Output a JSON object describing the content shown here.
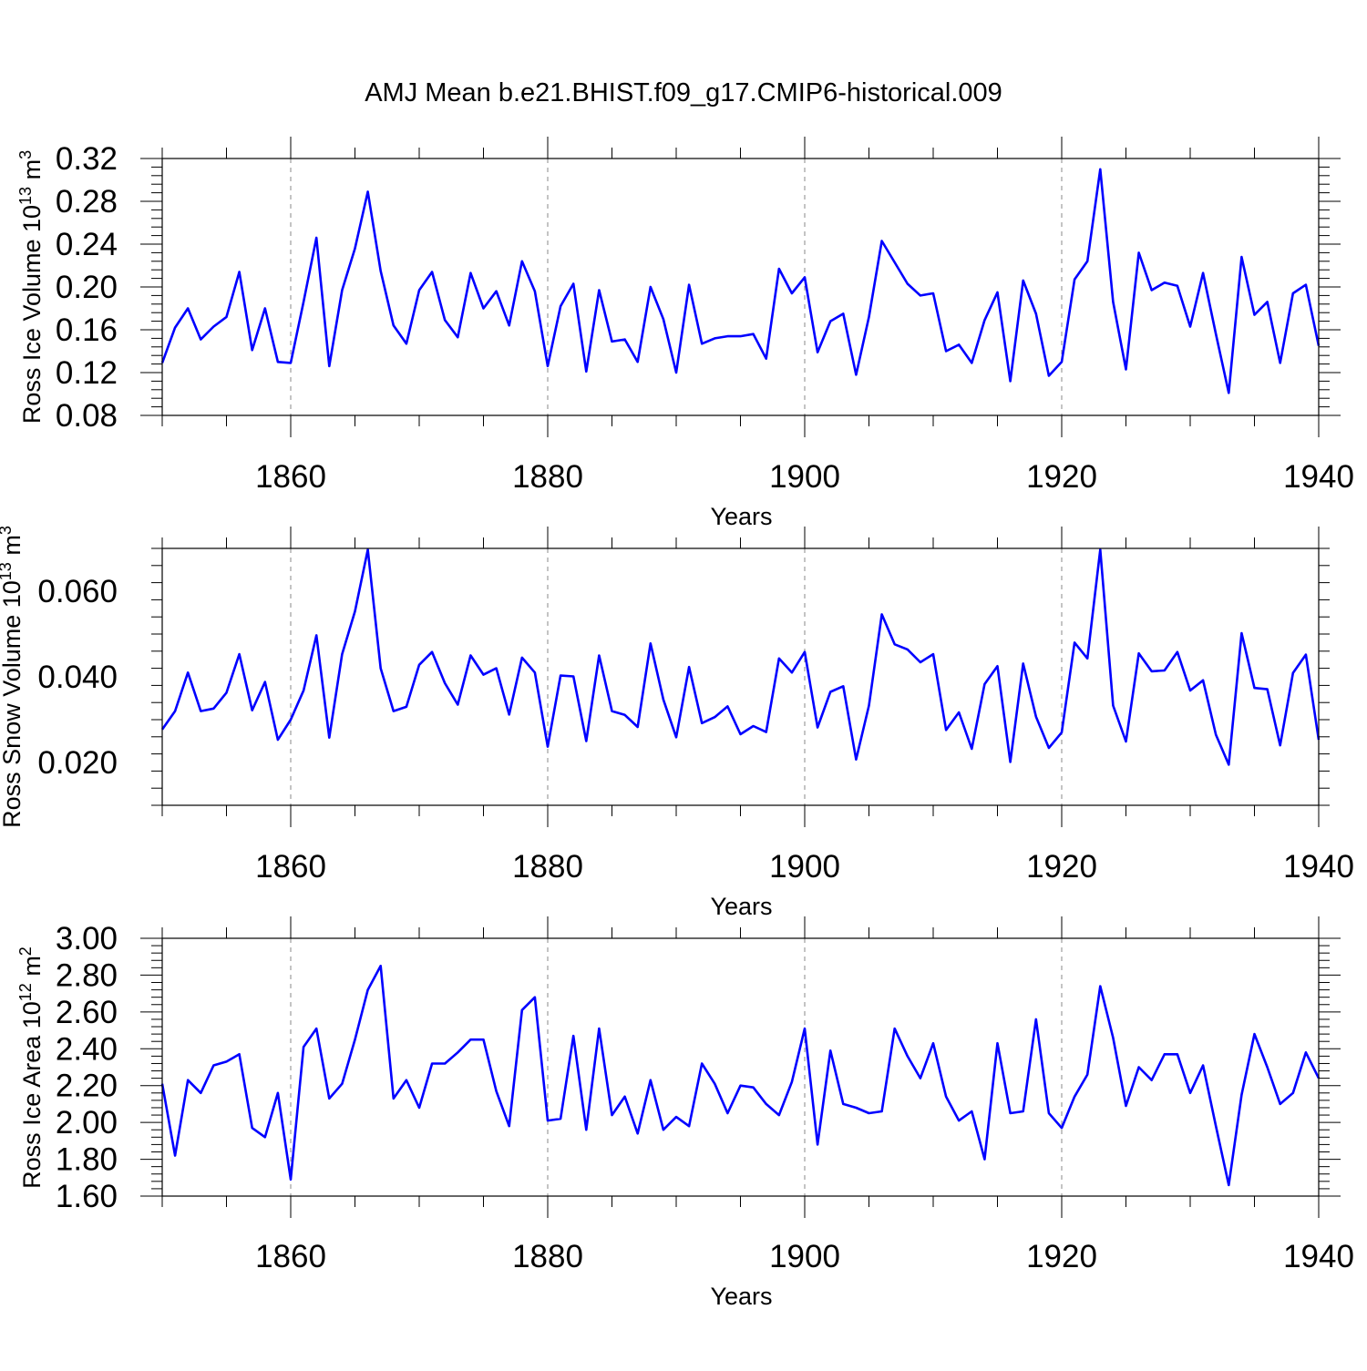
{
  "title": "AMJ Mean b.e21.BHIST.f09_g17.CMIP6-historical.009",
  "colors": {
    "series": "#0000ff",
    "axis": "#000000",
    "gridline": "#888888"
  },
  "chart_data": [
    {
      "type": "line",
      "ylabel": "Ross Ice Volume 10",
      "ylabel_sup": "13",
      "ylabel_unit": "m",
      "ylabel_unit_sup": "3",
      "xlabel": "Years",
      "xlim": [
        1850,
        1940
      ],
      "ylim": [
        0.08,
        0.32
      ],
      "yticks": [
        "0.08",
        "0.12",
        "0.16",
        "0.20",
        "0.24",
        "0.28",
        "0.32"
      ],
      "xticks": [
        "1860",
        "1880",
        "1900",
        "1920",
        "1940"
      ],
      "x_start": 1850,
      "values": [
        0.129,
        0.162,
        0.18,
        0.151,
        0.163,
        0.172,
        0.214,
        0.141,
        0.18,
        0.13,
        0.129,
        0.186,
        0.246,
        0.126,
        0.197,
        0.236,
        0.289,
        0.215,
        0.164,
        0.147,
        0.197,
        0.214,
        0.169,
        0.153,
        0.213,
        0.18,
        0.196,
        0.164,
        0.224,
        0.196,
        0.126,
        0.182,
        0.203,
        0.121,
        0.197,
        0.149,
        0.151,
        0.13,
        0.2,
        0.17,
        0.12,
        0.202,
        0.147,
        0.152,
        0.154,
        0.154,
        0.156,
        0.133,
        0.217,
        0.194,
        0.209,
        0.139,
        0.168,
        0.175,
        0.118,
        0.172,
        0.243,
        0.223,
        0.203,
        0.192,
        0.194,
        0.14,
        0.146,
        0.129,
        0.169,
        0.195,
        0.112,
        0.206,
        0.175,
        0.117,
        0.13,
        0.207,
        0.224,
        0.31,
        0.186,
        0.123,
        0.232,
        0.197,
        0.204,
        0.201,
        0.163,
        0.213,
        0.156,
        0.101,
        0.228,
        0.174,
        0.186,
        0.129,
        0.194,
        0.202,
        0.145
      ]
    },
    {
      "type": "line",
      "ylabel": "Ross Snow Volume 10",
      "ylabel_sup": "13",
      "ylabel_unit": "m",
      "ylabel_unit_sup": "3",
      "xlabel": "Years",
      "xlim": [
        1850,
        1940
      ],
      "ylim": [
        0.01,
        0.07
      ],
      "yticks": [
        "0.020",
        "0.040",
        "0.060"
      ],
      "xticks": [
        "1860",
        "1880",
        "1900",
        "1920",
        "1940"
      ],
      "x_start": 1850,
      "values": [
        0.0277,
        0.032,
        0.041,
        0.032,
        0.0326,
        0.0363,
        0.0453,
        0.0322,
        0.0388,
        0.0253,
        0.03,
        0.0368,
        0.0497,
        0.0258,
        0.0453,
        0.0553,
        0.0697,
        0.042,
        0.032,
        0.033,
        0.0428,
        0.0458,
        0.0385,
        0.0335,
        0.045,
        0.0405,
        0.042,
        0.0312,
        0.0445,
        0.041,
        0.0237,
        0.0403,
        0.0401,
        0.025,
        0.045,
        0.032,
        0.0311,
        0.0283,
        0.0478,
        0.0347,
        0.0259,
        0.0423,
        0.0292,
        0.0306,
        0.0331,
        0.0266,
        0.0285,
        0.0271,
        0.0443,
        0.041,
        0.0458,
        0.0282,
        0.0365,
        0.0378,
        0.0207,
        0.0333,
        0.0546,
        0.0476,
        0.0464,
        0.0434,
        0.0453,
        0.0276,
        0.0317,
        0.0232,
        0.0383,
        0.0425,
        0.0201,
        0.0431,
        0.0307,
        0.0234,
        0.027,
        0.048,
        0.0443,
        0.0697,
        0.0333,
        0.0249,
        0.0455,
        0.0413,
        0.0415,
        0.0458,
        0.0368,
        0.0392,
        0.0265,
        0.0195,
        0.0502,
        0.0374,
        0.0371,
        0.024,
        0.0409,
        0.0452,
        0.0253
      ]
    },
    {
      "type": "line",
      "ylabel": "Ross Ice Area 10",
      "ylabel_sup": "12",
      "ylabel_unit": "m",
      "ylabel_unit_sup": "2",
      "xlabel": "Years",
      "xlim": [
        1850,
        1940
      ],
      "ylim": [
        1.6,
        3.0
      ],
      "yticks": [
        "1.60",
        "1.80",
        "2.00",
        "2.20",
        "2.40",
        "2.60",
        "2.80",
        "3.00"
      ],
      "xticks": [
        "1860",
        "1880",
        "1900",
        "1920",
        "1940"
      ],
      "x_start": 1850,
      "values": [
        2.21,
        1.82,
        2.23,
        2.16,
        2.31,
        2.33,
        2.37,
        1.97,
        1.92,
        2.16,
        1.69,
        2.41,
        2.51,
        2.13,
        2.21,
        2.45,
        2.72,
        2.85,
        2.13,
        2.23,
        2.08,
        2.32,
        2.32,
        2.38,
        2.45,
        2.45,
        2.17,
        1.98,
        2.61,
        2.68,
        2.01,
        2.02,
        2.47,
        1.96,
        2.51,
        2.04,
        2.14,
        1.94,
        2.23,
        1.96,
        2.03,
        1.98,
        2.32,
        2.21,
        2.05,
        2.2,
        2.19,
        2.1,
        2.04,
        2.22,
        2.51,
        1.88,
        2.39,
        2.1,
        2.08,
        2.05,
        2.06,
        2.51,
        2.36,
        2.24,
        2.43,
        2.14,
        2.01,
        2.06,
        1.8,
        2.43,
        2.05,
        2.06,
        2.56,
        2.05,
        1.97,
        2.14,
        2.26,
        2.74,
        2.46,
        2.09,
        2.3,
        2.23,
        2.37,
        2.37,
        2.16,
        2.31,
        1.98,
        1.66,
        2.15,
        2.48,
        2.3,
        2.1,
        2.16,
        2.38,
        2.24
      ]
    }
  ]
}
